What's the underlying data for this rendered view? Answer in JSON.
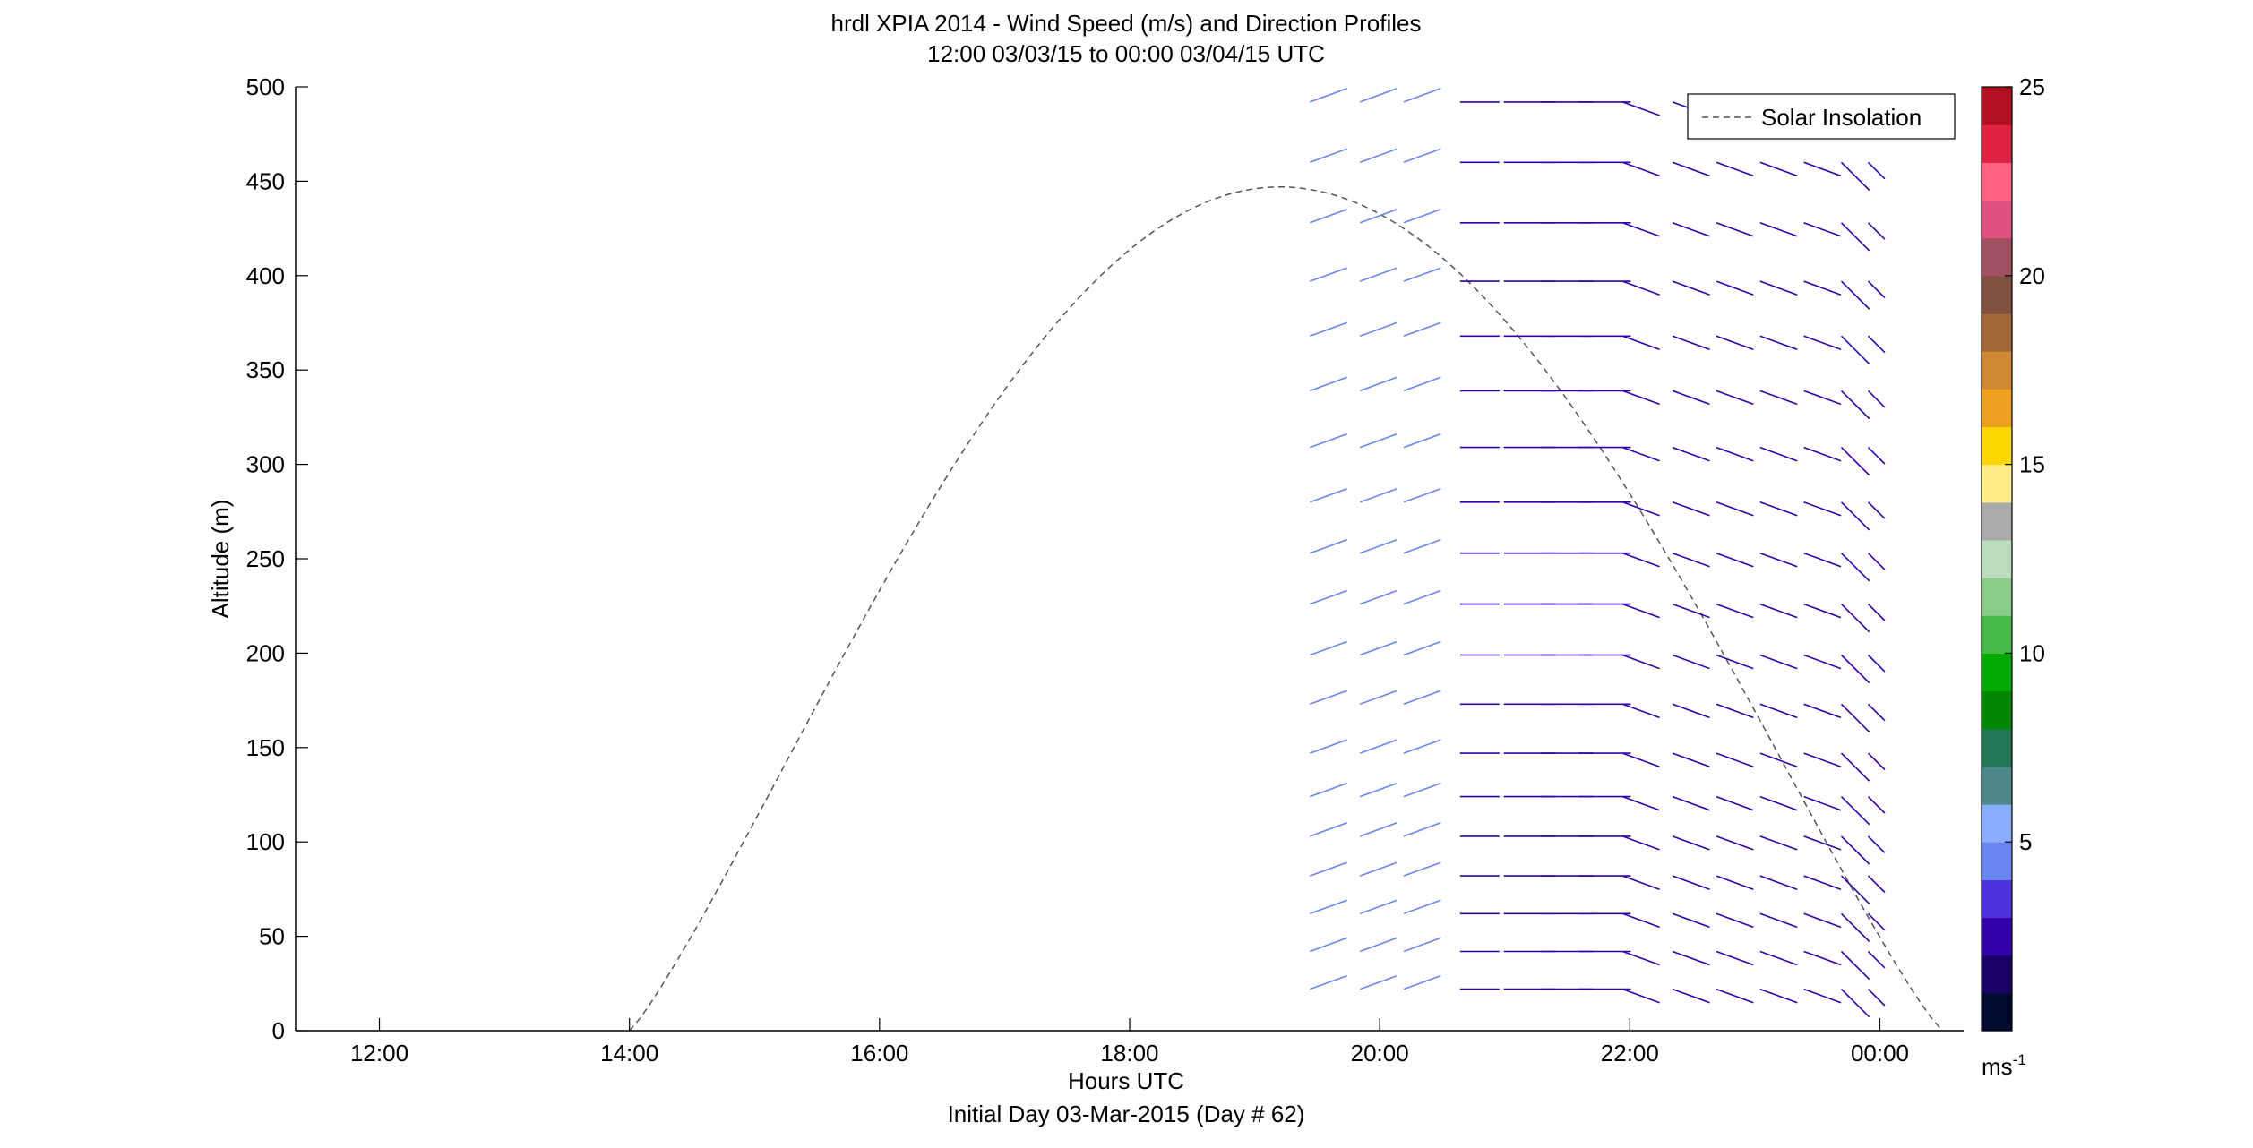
{
  "chart_data": {
    "type": "wind-barb-profile",
    "title": "hrdl XPIA 2014 - Wind Speed (m/s) and Direction Profiles",
    "subtitle": "12:00 03/03/15 to 00:00 03/04/15  UTC",
    "xlabel": "Hours UTC",
    "footer": "Initial Day 03-Mar-2015 (Day # 62)",
    "ylabel": "Altitude (m)",
    "xlim": [
      11.33,
      24.67
    ],
    "ylim": [
      0,
      500
    ],
    "x_ticks": [
      12,
      14,
      16,
      18,
      20,
      22,
      24
    ],
    "x_tick_labels": [
      "12:00",
      "14:00",
      "16:00",
      "18:00",
      "20:00",
      "22:00",
      "00:00"
    ],
    "y_ticks": [
      0,
      50,
      100,
      150,
      200,
      250,
      300,
      350,
      400,
      450,
      500
    ],
    "y_tick_labels": [
      "0",
      "50",
      "100",
      "150",
      "200",
      "250",
      "300",
      "350",
      "400",
      "450",
      "500"
    ],
    "legend": {
      "label": "Solar Insolation",
      "placement": "top-right"
    },
    "solar_insolation": {
      "style": "dashed",
      "color": "#555555",
      "start_hour": 14.0,
      "peak_hour": 19.2,
      "end_hour": 24.5,
      "peak_altitude": 447
    },
    "colorbar": {
      "min": 0,
      "max": 25,
      "ticks": [
        5,
        10,
        15,
        20,
        25
      ],
      "tick_labels": [
        "5",
        "10",
        "15",
        "20",
        "25"
      ],
      "unit_label": "ms",
      "unit_exponent": "-1",
      "colors": [
        "#000a2e",
        "#1a0066",
        "#3300aa",
        "#4d33dd",
        "#6b85f0",
        "#88aaff",
        "#4d8888",
        "#227755",
        "#008800",
        "#00aa00",
        "#44bb44",
        "#88cc88",
        "#bbddbb",
        "#aaaaaa",
        "#ffee88",
        "#ffd700",
        "#f0a020",
        "#d08830",
        "#a06838",
        "#805040",
        "#a05060",
        "#e05080",
        "#ff6080",
        "#dd2244",
        "#b01020"
      ]
    },
    "barb_times": [
      19.6,
      20.0,
      20.35,
      20.8,
      21.2,
      21.5,
      21.8,
      22.1,
      22.5,
      22.85,
      23.2,
      23.55,
      23.85,
      24.0
    ],
    "barb_altitudes": [
      22,
      42,
      62,
      82,
      103,
      124,
      147,
      173,
      199,
      226,
      253,
      280,
      309,
      339,
      368,
      397,
      428,
      460,
      492
    ],
    "barb_directions_deg": {
      "early": 250,
      "mid": 270,
      "late": 290,
      "end": 315
    },
    "barb_speeds_ms": {
      "early": 4.8,
      "mid": 2.4,
      "late": 2.6
    }
  }
}
